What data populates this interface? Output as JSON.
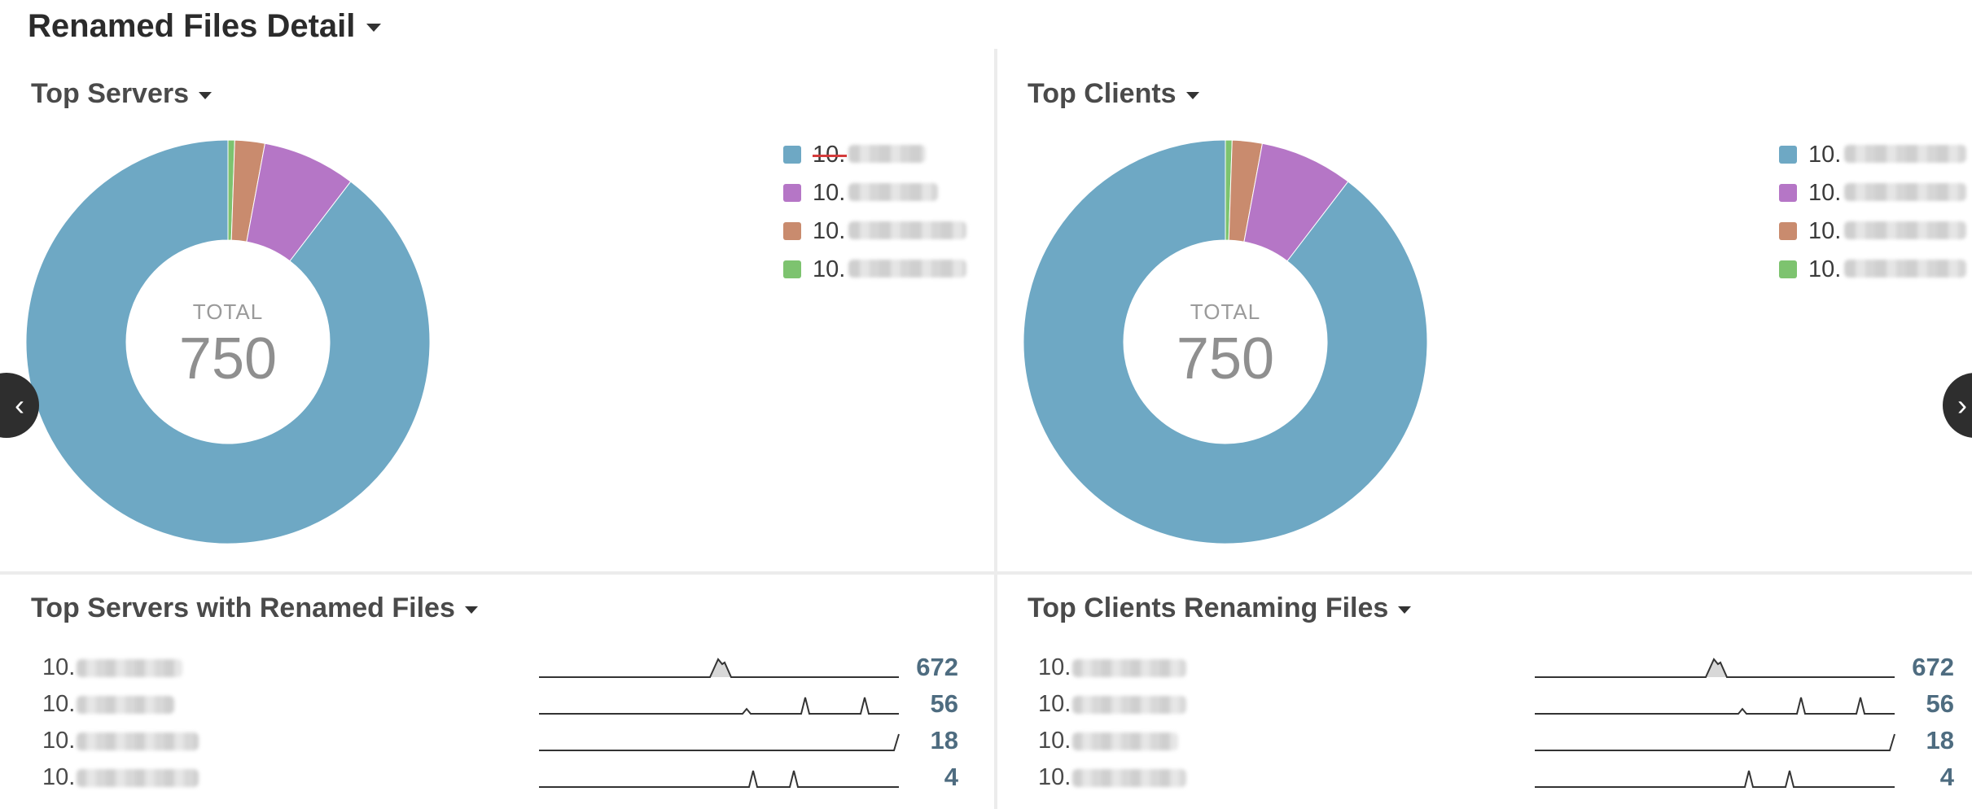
{
  "page": {
    "title": "Renamed Files Detail"
  },
  "colors": {
    "blue": "#6ea8c4",
    "purple": "#b576c6",
    "brown": "#c98b6e",
    "green": "#7dc36f",
    "value_text": "#4e6c80"
  },
  "icons": {
    "prev": "chevron-left-icon",
    "next": "chevron-right-icon",
    "menu": "caret-down-icon"
  },
  "top_servers": {
    "title": "Top Servers",
    "total_label": "TOTAL",
    "total_value": "750",
    "legend": [
      {
        "label": "10.",
        "color": "#6ea8c4",
        "disabled": true
      },
      {
        "label": "10.",
        "color": "#b576c6",
        "disabled": false
      },
      {
        "label": "10.",
        "color": "#c98b6e",
        "disabled": false
      },
      {
        "label": "10.",
        "color": "#7dc36f",
        "disabled": false
      }
    ]
  },
  "top_clients": {
    "title": "Top Clients",
    "total_label": "TOTAL",
    "total_value": "750",
    "legend": [
      {
        "label": "10.",
        "color": "#6ea8c4"
      },
      {
        "label": "10.",
        "color": "#b576c6"
      },
      {
        "label": "10.",
        "color": "#c98b6e"
      },
      {
        "label": "10.",
        "color": "#7dc36f"
      }
    ]
  },
  "chart_data": [
    {
      "type": "pie",
      "title": "Top Servers",
      "total": 750,
      "slices": [
        {
          "color": "#6ea8c4",
          "value": 672
        },
        {
          "color": "#b576c6",
          "value": 56
        },
        {
          "color": "#c98b6e",
          "value": 18
        },
        {
          "color": "#7dc36f",
          "value": 4
        }
      ]
    },
    {
      "type": "pie",
      "title": "Top Clients",
      "total": 750,
      "slices": [
        {
          "color": "#6ea8c4",
          "value": 672
        },
        {
          "color": "#b576c6",
          "value": 56
        },
        {
          "color": "#c98b6e",
          "value": 18
        },
        {
          "color": "#7dc36f",
          "value": 4
        }
      ]
    }
  ],
  "servers_renamed": {
    "title": "Top Servers with Renamed Files",
    "rows": [
      {
        "label": "10.",
        "value": "672"
      },
      {
        "label": "10.",
        "value": "56"
      },
      {
        "label": "10.",
        "value": "18"
      },
      {
        "label": "10.",
        "value": "4"
      }
    ]
  },
  "clients_renaming": {
    "title": "Top Clients Renaming Files",
    "rows": [
      {
        "label": "10.",
        "value": "672"
      },
      {
        "label": "10.",
        "value": "56"
      },
      {
        "label": "10.",
        "value": "18"
      },
      {
        "label": "10.",
        "value": "4"
      }
    ]
  }
}
